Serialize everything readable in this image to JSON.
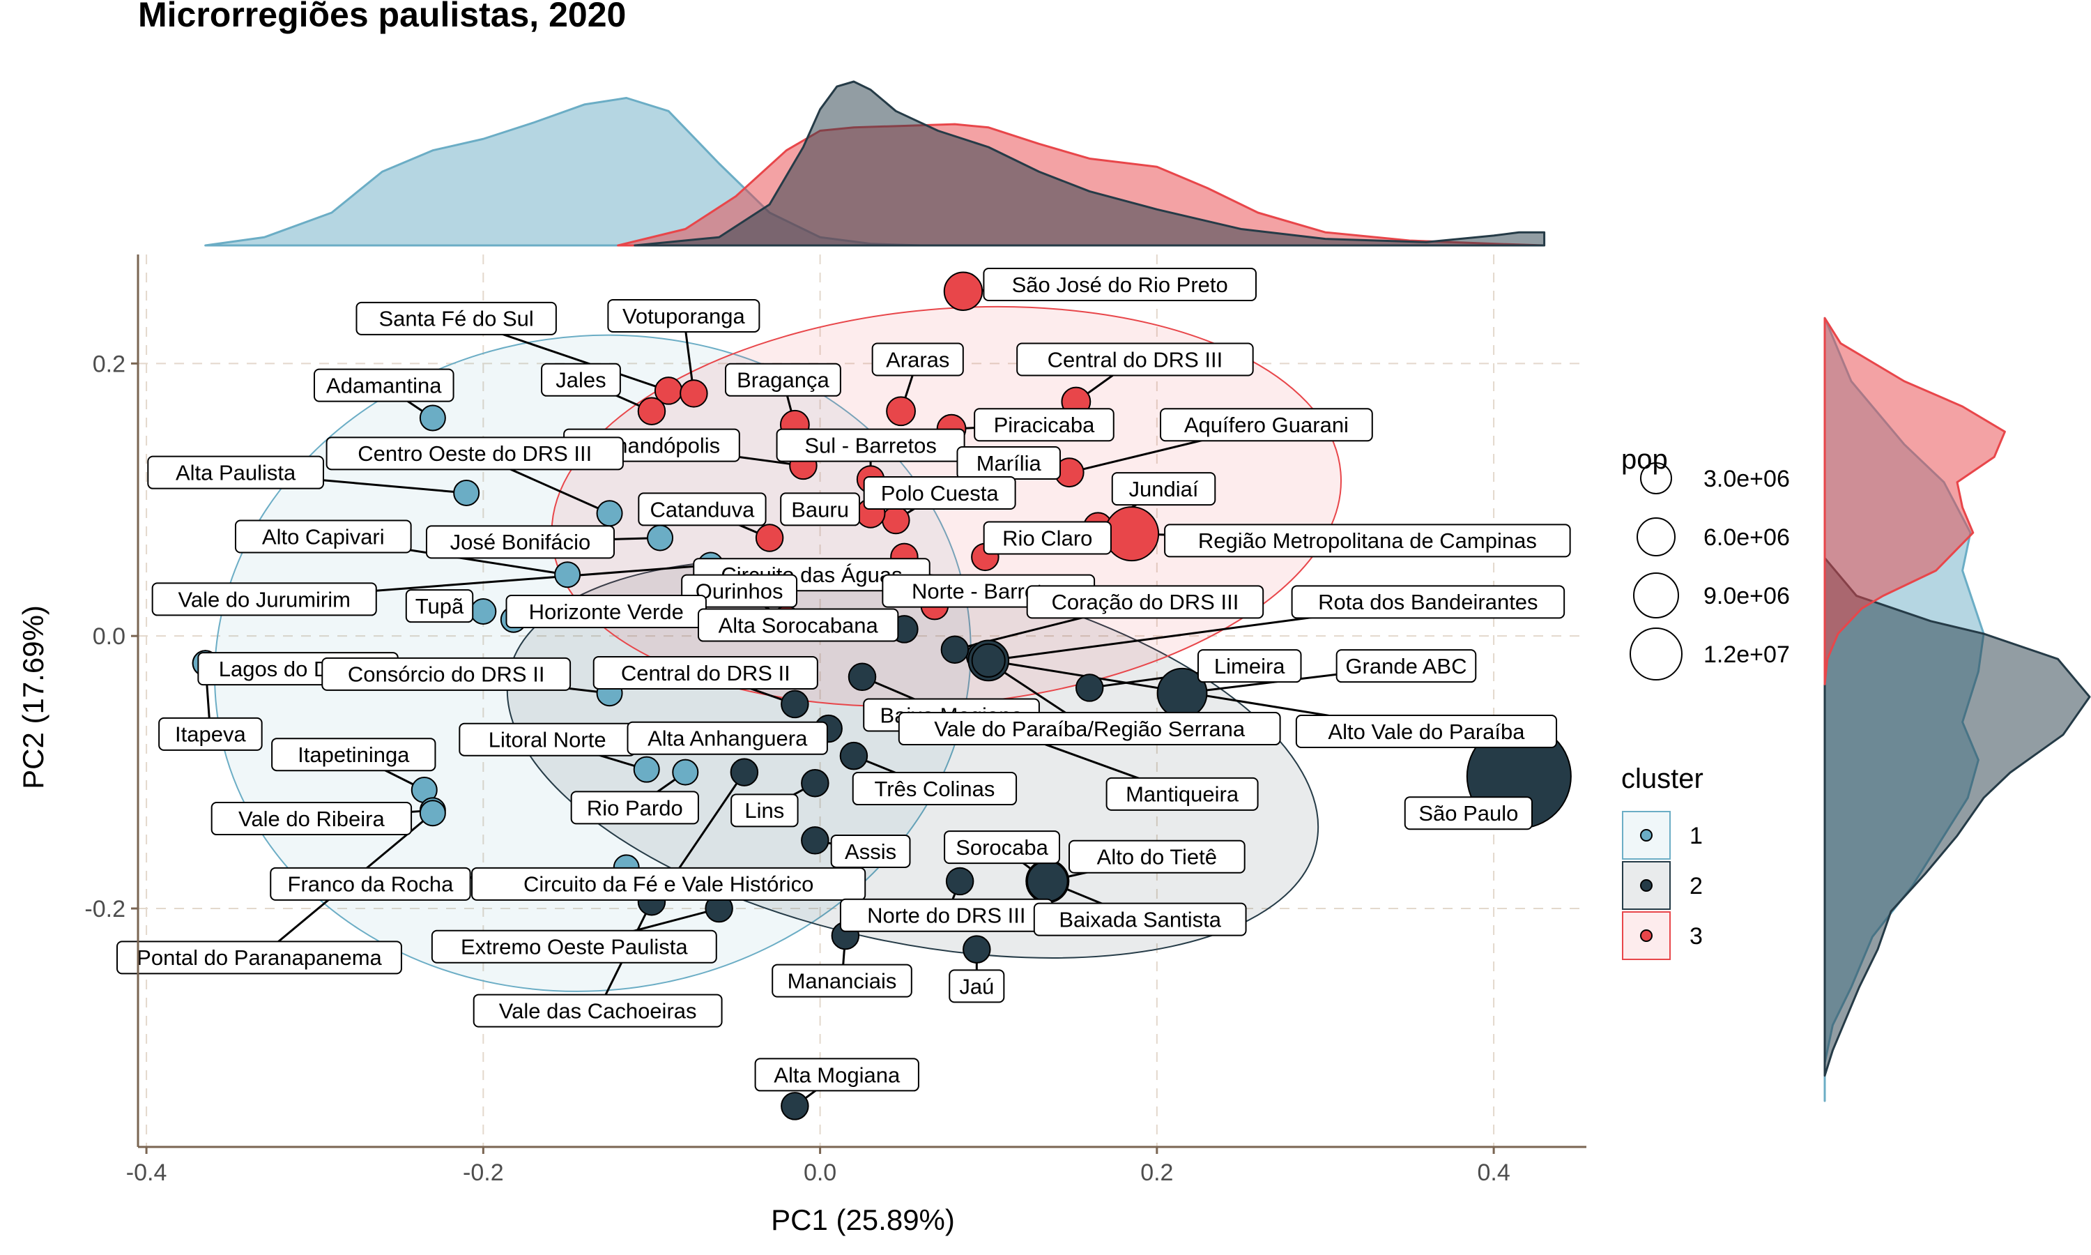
{
  "chart_data": {
    "type": "scatter",
    "title": "Microrregiões paulistas, 2020",
    "xlabel": "PC1 (25.89%)",
    "ylabel": "PC2 (17.69%)",
    "xlim": [
      -0.405,
      0.455
    ],
    "ylim": [
      -0.375,
      0.28
    ],
    "x_ticks": [
      -0.4,
      -0.2,
      0.0,
      0.2,
      0.4
    ],
    "x_tick_labels": [
      "-0.4",
      "-0.2",
      "0.0",
      "0.2",
      "0.4"
    ],
    "y_ticks": [
      -0.2,
      0.0,
      0.2
    ],
    "y_tick_labels": [
      "-0.2",
      "0.0",
      "0.2"
    ],
    "grid": true,
    "cluster_colors": {
      "1": "#6badc5",
      "2": "#253b47",
      "3": "#e8464a"
    },
    "legend": {
      "pop_title": "pop",
      "pop_entries": [
        {
          "label": "3.0e+06",
          "value": 3000000
        },
        {
          "label": "6.0e+06",
          "value": 6000000
        },
        {
          "label": "9.0e+06",
          "value": 9000000
        },
        {
          "label": "1.2e+07",
          "value": 12000000
        }
      ],
      "cluster_title": "cluster",
      "cluster_entries": [
        {
          "label": "1",
          "cluster": 1
        },
        {
          "label": "2",
          "cluster": 2
        },
        {
          "label": "3",
          "cluster": 3
        }
      ],
      "placement": "right"
    },
    "ellipses": [
      {
        "cluster": 1,
        "cx": -0.135,
        "cy": -0.02,
        "rx": 0.225,
        "ry": 0.24,
        "angle": -8
      },
      {
        "cluster": 2,
        "cx": 0.055,
        "cy": -0.09,
        "rx": 0.245,
        "ry": 0.135,
        "angle": 12
      },
      {
        "cluster": 3,
        "cx": 0.075,
        "cy": 0.095,
        "rx": 0.235,
        "ry": 0.145,
        "angle": -5
      }
    ],
    "density_x": [
      {
        "cluster": 1,
        "x": [
          -0.365,
          -0.33,
          -0.29,
          -0.26,
          -0.23,
          -0.2,
          -0.17,
          -0.14,
          -0.115,
          -0.09,
          -0.06,
          -0.03,
          0.0,
          0.03,
          0.06,
          0.1
        ],
        "d": [
          0.0,
          0.05,
          0.2,
          0.45,
          0.58,
          0.65,
          0.75,
          0.86,
          0.9,
          0.82,
          0.5,
          0.2,
          0.05,
          0.01,
          0.0,
          0.0
        ]
      },
      {
        "cluster": 2,
        "x": [
          -0.11,
          -0.06,
          -0.03,
          -0.01,
          0.0,
          0.01,
          0.02,
          0.03,
          0.045,
          0.07,
          0.1,
          0.13,
          0.16,
          0.2,
          0.25,
          0.3,
          0.36,
          0.4,
          0.415,
          0.43
        ],
        "d": [
          0.0,
          0.05,
          0.25,
          0.6,
          0.83,
          0.97,
          1.0,
          0.95,
          0.82,
          0.7,
          0.6,
          0.45,
          0.33,
          0.22,
          0.1,
          0.04,
          0.02,
          0.06,
          0.08,
          0.08
        ]
      },
      {
        "cluster": 3,
        "x": [
          -0.12,
          -0.08,
          -0.05,
          -0.02,
          0.0,
          0.02,
          0.05,
          0.08,
          0.1,
          0.13,
          0.16,
          0.2,
          0.23,
          0.26,
          0.3,
          0.35,
          0.4,
          0.43
        ],
        "d": [
          0.0,
          0.1,
          0.3,
          0.58,
          0.7,
          0.72,
          0.73,
          0.74,
          0.72,
          0.62,
          0.53,
          0.48,
          0.35,
          0.2,
          0.08,
          0.03,
          0.01,
          0.0
        ]
      }
    ],
    "density_y": [
      {
        "cluster": 1,
        "y": [
          0.25,
          0.2,
          0.15,
          0.12,
          0.08,
          0.05,
          0.0,
          -0.03,
          -0.07,
          -0.1,
          -0.13,
          -0.16,
          -0.2,
          -0.24,
          -0.28,
          -0.31,
          -0.34,
          -0.37
        ],
        "d": [
          0.0,
          0.1,
          0.3,
          0.45,
          0.55,
          0.52,
          0.6,
          0.58,
          0.52,
          0.58,
          0.54,
          0.45,
          0.33,
          0.18,
          0.1,
          0.03,
          0.0,
          0.0
        ]
      },
      {
        "cluster": 2,
        "y": [
          0.06,
          0.03,
          0.01,
          0.0,
          -0.02,
          -0.05,
          -0.08,
          -0.11,
          -0.13,
          -0.16,
          -0.19,
          -0.22,
          -0.25,
          -0.28,
          -0.31,
          -0.33,
          -0.35
        ],
        "d": [
          0.0,
          0.12,
          0.4,
          0.6,
          0.88,
          1.0,
          0.9,
          0.7,
          0.6,
          0.5,
          0.38,
          0.25,
          0.2,
          0.13,
          0.07,
          0.03,
          0.0
        ]
      },
      {
        "cluster": 3,
        "y": [
          0.25,
          0.23,
          0.2,
          0.18,
          0.16,
          0.14,
          0.12,
          0.1,
          0.08,
          0.05,
          0.03,
          0.02,
          0.0,
          -0.02,
          -0.04
        ],
        "d": [
          0.0,
          0.06,
          0.3,
          0.52,
          0.68,
          0.64,
          0.5,
          0.52,
          0.56,
          0.42,
          0.22,
          0.14,
          0.05,
          0.01,
          0.0
        ]
      }
    ],
    "points": [
      {
        "label": "São José do Rio Preto",
        "x": 0.085,
        "y": 0.253,
        "cluster": 3,
        "pop": 1600000,
        "lx": 0.178,
        "ly": 0.258
      },
      {
        "label": "Santa Fé do Sul",
        "x": -0.09,
        "y": 0.18,
        "cluster": 3,
        "pop": 800000,
        "lx": -0.216,
        "ly": 0.233
      },
      {
        "label": "Votuporanga",
        "x": -0.075,
        "y": 0.178,
        "cluster": 3,
        "pop": 800000,
        "lx": -0.081,
        "ly": 0.235
      },
      {
        "label": "Jales",
        "x": -0.1,
        "y": 0.165,
        "cluster": 3,
        "pop": 800000,
        "lx": -0.142,
        "ly": 0.188
      },
      {
        "label": "Bragança",
        "x": -0.015,
        "y": 0.155,
        "cluster": 3,
        "pop": 900000,
        "lx": -0.022,
        "ly": 0.188
      },
      {
        "label": "Araras",
        "x": 0.048,
        "y": 0.165,
        "cluster": 3,
        "pop": 900000,
        "lx": 0.058,
        "ly": 0.203
      },
      {
        "label": "Central do DRS III",
        "x": 0.152,
        "y": 0.172,
        "cluster": 3,
        "pop": 900000,
        "lx": 0.187,
        "ly": 0.203
      },
      {
        "label": "Piracicaba",
        "x": 0.078,
        "y": 0.152,
        "cluster": 3,
        "pop": 900000,
        "lx": 0.133,
        "ly": 0.155
      },
      {
        "label": "Aquífero Guarani",
        "x": 0.148,
        "y": 0.12,
        "cluster": 3,
        "pop": 900000,
        "lx": 0.265,
        "ly": 0.155
      },
      {
        "label": "Fernandópolis",
        "x": -0.01,
        "y": 0.125,
        "cluster": 3,
        "pop": 800000,
        "lx": -0.1,
        "ly": 0.14
      },
      {
        "label": "Sul - Barretos",
        "x": 0.03,
        "y": 0.115,
        "cluster": 3,
        "pop": 800000,
        "lx": 0.03,
        "ly": 0.14
      },
      {
        "label": "Marília",
        "x": 0.1,
        "y": 0.115,
        "cluster": 3,
        "pop": 800000,
        "lx": 0.112,
        "ly": 0.127
      },
      {
        "label": "Polo Cuesta",
        "x": 0.045,
        "y": 0.085,
        "cluster": 3,
        "pop": 800000,
        "lx": 0.071,
        "ly": 0.105
      },
      {
        "label": "Jundiaí",
        "x": 0.165,
        "y": 0.08,
        "cluster": 3,
        "pop": 900000,
        "lx": 0.204,
        "ly": 0.108
      },
      {
        "label": "Bauru",
        "x": 0.03,
        "y": 0.09,
        "cluster": 3,
        "pop": 900000,
        "lx": 0.0,
        "ly": 0.093
      },
      {
        "label": "Catanduva",
        "x": -0.03,
        "y": 0.072,
        "cluster": 3,
        "pop": 800000,
        "lx": -0.07,
        "ly": 0.093
      },
      {
        "label": "Região Metropolitana de Campinas",
        "x": 0.185,
        "y": 0.075,
        "cluster": 3,
        "pop": 3200000,
        "lx": 0.325,
        "ly": 0.07
      },
      {
        "label": "Rio Claro",
        "x": 0.098,
        "y": 0.058,
        "cluster": 3,
        "pop": 800000,
        "lx": 0.135,
        "ly": 0.072
      },
      {
        "label": "Circuito das Águas",
        "x": 0.05,
        "y": 0.058,
        "cluster": 3,
        "pop": 800000,
        "lx": -0.005,
        "ly": 0.045
      },
      {
        "label": "Norte - Barretos",
        "x": 0.068,
        "y": 0.022,
        "cluster": 3,
        "pop": 800000,
        "lx": 0.1,
        "ly": 0.033
      },
      {
        "label": "Ourinhos",
        "x": -0.02,
        "y": 0.012,
        "cluster": 3,
        "pop": 800000,
        "lx": -0.048,
        "ly": 0.033
      },
      {
        "label": "Adamantina",
        "x": -0.23,
        "y": 0.16,
        "cluster": 1,
        "pop": 700000,
        "lx": -0.259,
        "ly": 0.184
      },
      {
        "label": "Centro Oeste do DRS III",
        "x": -0.125,
        "y": 0.09,
        "cluster": 1,
        "pop": 700000,
        "lx": -0.205,
        "ly": 0.134
      },
      {
        "label": "Alta Paulista",
        "x": -0.21,
        "y": 0.105,
        "cluster": 1,
        "pop": 700000,
        "lx": -0.347,
        "ly": 0.12
      },
      {
        "label": "Alto Capivari",
        "x": -0.15,
        "y": 0.045,
        "cluster": 1,
        "pop": 700000,
        "lx": -0.295,
        "ly": 0.073
      },
      {
        "label": "José Bonifácio",
        "x": -0.095,
        "y": 0.072,
        "cluster": 1,
        "pop": 700000,
        "lx": -0.178,
        "ly": 0.069
      },
      {
        "label": "Vale do Jurumirim",
        "x": -0.065,
        "y": 0.052,
        "cluster": 1,
        "pop": 700000,
        "lx": -0.33,
        "ly": 0.027
      },
      {
        "label": "Tupã",
        "x": -0.2,
        "y": 0.018,
        "cluster": 1,
        "pop": 700000,
        "lx": -0.226,
        "ly": 0.022
      },
      {
        "label": "Horizonte Verde",
        "x": -0.182,
        "y": 0.012,
        "cluster": 1,
        "pop": 700000,
        "lx": -0.127,
        "ly": 0.018
      },
      {
        "label": "Lagos do DRS II",
        "x": -0.365,
        "y": -0.02,
        "cluster": 1,
        "pop": 700000,
        "lx": -0.31,
        "ly": -0.024
      },
      {
        "label": "Itapeva",
        "x": -0.365,
        "y": -0.02,
        "cluster": 1,
        "pop": 700000,
        "lx": -0.362,
        "ly": -0.072
      },
      {
        "label": "Consórcio do DRS II",
        "x": -0.125,
        "y": -0.042,
        "cluster": 1,
        "pop": 700000,
        "lx": -0.222,
        "ly": -0.028
      },
      {
        "label": "Itapetininga",
        "x": -0.235,
        "y": -0.113,
        "cluster": 1,
        "pop": 700000,
        "lx": -0.277,
        "ly": -0.087
      },
      {
        "label": "Vale do Ribeira",
        "x": -0.23,
        "y": -0.128,
        "cluster": 1,
        "pop": 700000,
        "lx": -0.302,
        "ly": -0.134
      },
      {
        "label": "Litoral Norte",
        "x": -0.103,
        "y": -0.098,
        "cluster": 1,
        "pop": 700000,
        "lx": -0.162,
        "ly": -0.076
      },
      {
        "label": "Rio Pardo",
        "x": -0.08,
        "y": -0.1,
        "cluster": 1,
        "pop": 700000,
        "lx": -0.11,
        "ly": -0.126
      },
      {
        "label": "Franco da Rocha",
        "x": -0.115,
        "y": -0.17,
        "cluster": 1,
        "pop": 700000,
        "lx": -0.267,
        "ly": -0.182
      },
      {
        "label": "Pontal do Paranapanema",
        "x": -0.23,
        "y": -0.13,
        "cluster": 1,
        "pop": 700000,
        "lx": -0.333,
        "ly": -0.236
      },
      {
        "label": "Circuito da Fé e Vale Histórico",
        "x": -0.045,
        "y": -0.1,
        "cluster": 2,
        "pop": 800000,
        "lx": -0.09,
        "ly": -0.182
      },
      {
        "label": "Extremo Oeste Paulista",
        "x": -0.06,
        "y": -0.2,
        "cluster": 2,
        "pop": 800000,
        "lx": -0.146,
        "ly": -0.228
      },
      {
        "label": "Vale das Cachoeiras",
        "x": -0.1,
        "y": -0.195,
        "cluster": 2,
        "pop": 800000,
        "lx": -0.132,
        "ly": -0.275
      },
      {
        "label": "Alta Sorocabana",
        "x": 0.05,
        "y": 0.005,
        "cluster": 2,
        "pop": 800000,
        "lx": -0.013,
        "ly": 0.008
      },
      {
        "label": "Central do DRS II",
        "x": -0.015,
        "y": -0.05,
        "cluster": 2,
        "pop": 800000,
        "lx": -0.068,
        "ly": -0.027
      },
      {
        "label": "Baixa Mogiana",
        "x": 0.025,
        "y": -0.03,
        "cluster": 2,
        "pop": 800000,
        "lx": 0.078,
        "ly": -0.058
      },
      {
        "label": "Alta Anhanguera",
        "x": 0.005,
        "y": -0.068,
        "cluster": 2,
        "pop": 800000,
        "lx": -0.055,
        "ly": -0.075
      },
      {
        "label": "Vale do Paraíba/Região Serrana",
        "x": 0.095,
        "y": -0.015,
        "cluster": 2,
        "pop": 800000,
        "lx": 0.16,
        "ly": -0.068
      },
      {
        "label": "Limeira",
        "x": 0.16,
        "y": -0.038,
        "cluster": 2,
        "pop": 800000,
        "lx": 0.255,
        "ly": -0.022
      },
      {
        "label": "Grande ABC",
        "x": 0.215,
        "y": -0.042,
        "cluster": 2,
        "pop": 2700000,
        "lx": 0.348,
        "ly": -0.022
      },
      {
        "label": "Coração do DRS III",
        "x": 0.08,
        "y": -0.01,
        "cluster": 2,
        "pop": 800000,
        "lx": 0.193,
        "ly": 0.025
      },
      {
        "label": "Rota dos Bandeirantes",
        "x": 0.1,
        "y": -0.018,
        "cluster": 2,
        "pop": 1800000,
        "lx": 0.361,
        "ly": 0.025
      },
      {
        "label": "Alto Vale do Paraíba",
        "x": 0.1,
        "y": -0.018,
        "cluster": 2,
        "pop": 1200000,
        "lx": 0.36,
        "ly": -0.07
      },
      {
        "label": "São Paulo",
        "x": 0.415,
        "y": -0.103,
        "cluster": 2,
        "pop": 12000000,
        "lx": 0.385,
        "ly": -0.13
      },
      {
        "label": "Três Colinas",
        "x": 0.02,
        "y": -0.088,
        "cluster": 2,
        "pop": 800000,
        "lx": 0.068,
        "ly": -0.112
      },
      {
        "label": "Mantiqueira",
        "x": 0.09,
        "y": -0.06,
        "cluster": 2,
        "pop": 800000,
        "lx": 0.215,
        "ly": -0.116
      },
      {
        "label": "Lins",
        "x": -0.003,
        "y": -0.108,
        "cluster": 2,
        "pop": 800000,
        "lx": -0.033,
        "ly": -0.128
      },
      {
        "label": "Assis",
        "x": -0.003,
        "y": -0.15,
        "cluster": 2,
        "pop": 800000,
        "lx": 0.03,
        "ly": -0.158
      },
      {
        "label": "Sorocaba",
        "x": 0.135,
        "y": -0.18,
        "cluster": 2,
        "pop": 2000000,
        "lx": 0.108,
        "ly": -0.155
      },
      {
        "label": "Alto do Tietê",
        "x": 0.135,
        "y": -0.18,
        "cluster": 2,
        "pop": 2000000,
        "lx": 0.2,
        "ly": -0.162
      },
      {
        "label": "Norte do DRS III",
        "x": 0.083,
        "y": -0.18,
        "cluster": 2,
        "pop": 800000,
        "lx": 0.075,
        "ly": -0.205
      },
      {
        "label": "Baixada Santista",
        "x": 0.135,
        "y": -0.18,
        "cluster": 2,
        "pop": 1800000,
        "lx": 0.19,
        "ly": -0.208
      },
      {
        "label": "Mananciais",
        "x": 0.015,
        "y": -0.22,
        "cluster": 2,
        "pop": 800000,
        "lx": 0.013,
        "ly": -0.253
      },
      {
        "label": "Jaú",
        "x": 0.093,
        "y": -0.23,
        "cluster": 2,
        "pop": 800000,
        "lx": 0.093,
        "ly": -0.257
      },
      {
        "label": "Alta Mogiana",
        "x": -0.015,
        "y": -0.345,
        "cluster": 2,
        "pop": 800000,
        "lx": 0.01,
        "ly": -0.322
      }
    ]
  }
}
